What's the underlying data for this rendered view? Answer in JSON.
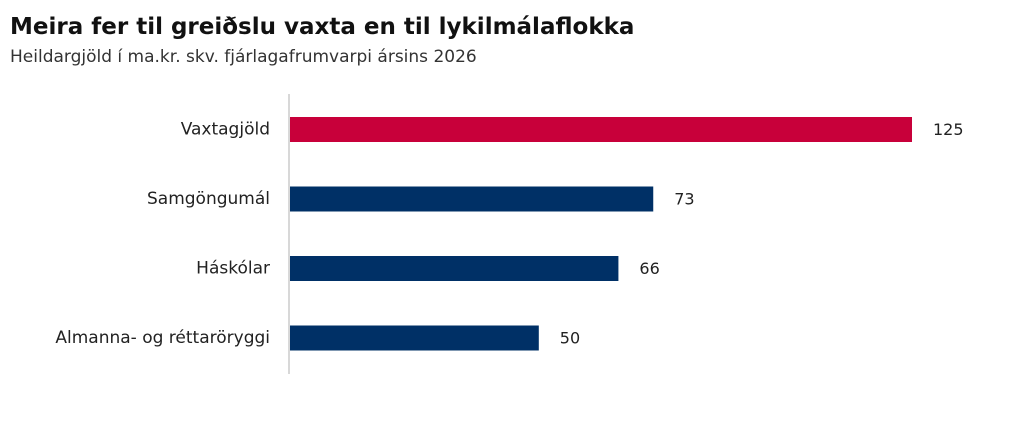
{
  "title": "Meira fer til greiðslu vaxta en til lykilmálaflokka",
  "subtitle": "Heildargjöld í ma.kr. skv. fjárlagafrumvarpi ársins 2026",
  "colors": {
    "highlight": "#c8003a",
    "default": "#003066",
    "axis": "#cccccc"
  },
  "chart_data": {
    "type": "bar",
    "orientation": "horizontal",
    "categories": [
      "Vaxtagjöld",
      "Samgöngumál",
      "Háskólar",
      "Almanna- og réttaröryggi"
    ],
    "values": [
      125,
      73,
      66,
      50
    ],
    "highlighted": [
      "Vaxtagjöld"
    ],
    "xlim": [
      0,
      125
    ],
    "grid": false,
    "legend": "none"
  }
}
